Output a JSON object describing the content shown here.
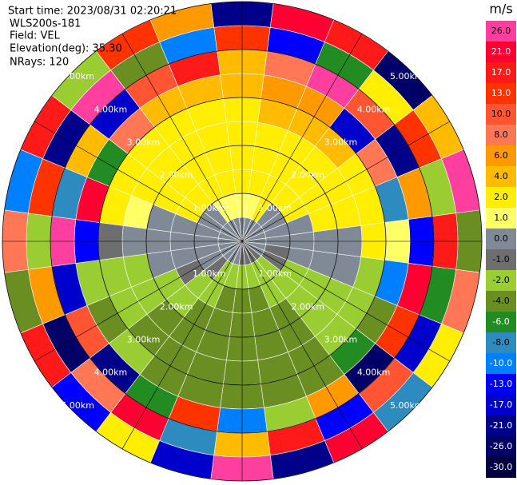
{
  "header": {
    "start_time": "Start time: 2023/08/31 02:20:21",
    "instrument": "WLS200s-181",
    "field": "Field: VEL",
    "elevation": "Elevation(deg): 35.30",
    "nrays": "NRays: 120"
  },
  "chart_data": {
    "type": "ppi",
    "azimuths": [
      0,
      15,
      30,
      45,
      60,
      75,
      90,
      105,
      120,
      135,
      150,
      165,
      180,
      195,
      210,
      225,
      240,
      255,
      270,
      285,
      300,
      315,
      330,
      345
    ],
    "range_edges_km": [
      0,
      0.5,
      1,
      1.5,
      2,
      2.5,
      3,
      3.5,
      4,
      4.5,
      5
    ],
    "values": [
      [
        0,
        1,
        2,
        2,
        3,
        3,
        4,
        5,
        13,
        -21
      ],
      [
        0,
        1,
        2,
        2,
        3,
        4,
        6,
        8,
        -13,
        21
      ],
      [
        0,
        2,
        2,
        3,
        3,
        4,
        6,
        26,
        -6,
        17
      ],
      [
        0,
        0,
        2,
        2,
        3,
        4,
        -17,
        10,
        2,
        -26
      ],
      [
        0,
        0,
        2,
        2,
        3,
        2,
        8,
        -21,
        13,
        4
      ],
      [
        0,
        0,
        0,
        2,
        2,
        2,
        -8,
        6,
        -2,
        26
      ],
      [
        0,
        0,
        0,
        0,
        0,
        2,
        1,
        -13,
        17,
        -4
      ],
      [
        0,
        -1,
        0,
        0,
        0,
        -2,
        -10,
        21,
        -6,
        8
      ],
      [
        0,
        -1,
        -2,
        -2,
        -2,
        -2,
        -4,
        13,
        -17,
        2
      ],
      [
        -1,
        -2,
        -2,
        -2,
        -2,
        -2,
        -6,
        -26,
        10,
        -8
      ],
      [
        -1,
        -2,
        -2,
        -3,
        -3,
        -3,
        -3,
        6,
        -13,
        21
      ],
      [
        -1,
        -2,
        -3,
        -3,
        -3,
        -3,
        -3,
        -2,
        17,
        -21
      ],
      [
        -1,
        -2,
        -3,
        -3,
        -3,
        -3,
        -4,
        -10,
        4,
        26
      ],
      [
        0,
        -2,
        -3,
        -3,
        -3,
        -3,
        -3,
        13,
        -8,
        -17
      ],
      [
        0,
        -2,
        -2,
        -3,
        -3,
        -3,
        -3,
        -6,
        21,
        2
      ],
      [
        0,
        -1,
        -2,
        -2,
        -3,
        -3,
        -2,
        -21,
        8,
        -13
      ],
      [
        0,
        0,
        -1,
        -2,
        -2,
        -2,
        -4,
        10,
        -26,
        17
      ],
      [
        0,
        0,
        0,
        0,
        -2,
        -2,
        -2,
        -17,
        6,
        -4
      ],
      [
        0,
        0,
        0,
        0,
        0,
        -1,
        -13,
        26,
        -2,
        8
      ],
      [
        0,
        0,
        0,
        0,
        1,
        2,
        21,
        -8,
        13,
        -10
      ],
      [
        0,
        0,
        2,
        2,
        2,
        2,
        -6,
        4,
        -21,
        17
      ],
      [
        0,
        0,
        2,
        2,
        2,
        3,
        8,
        -17,
        26,
        -2
      ],
      [
        0,
        1,
        2,
        2,
        2,
        3,
        5,
        10,
        -4,
        13
      ],
      [
        0,
        1,
        2,
        2,
        3,
        3,
        4,
        17,
        -10,
        6
      ]
    ],
    "range_rings": [
      {
        "value": 1,
        "label": "1.00km"
      },
      {
        "value": 2,
        "label": "2.00km"
      },
      {
        "value": 3,
        "label": "3.00km"
      },
      {
        "value": 4,
        "label": "4.00km"
      },
      {
        "value": 5,
        "label": "5.00km"
      }
    ],
    "colorbar": {
      "title": "m/s",
      "ticks": [
        {
          "value": 26,
          "label": "26.0"
        },
        {
          "value": 21,
          "label": "21.0"
        },
        {
          "value": 17,
          "label": "17.0"
        },
        {
          "value": 13,
          "label": "13.0"
        },
        {
          "value": 10,
          "label": "10.0"
        },
        {
          "value": 8,
          "label": "8.0"
        },
        {
          "value": 6,
          "label": "6.0"
        },
        {
          "value": 4,
          "label": "4.0"
        },
        {
          "value": 2,
          "label": "2.0"
        },
        {
          "value": 1,
          "label": "1.0"
        },
        {
          "value": 0,
          "label": "0.0"
        },
        {
          "value": -1,
          "label": "-1.0"
        },
        {
          "value": -2,
          "label": "-2.0"
        },
        {
          "value": -4,
          "label": "-4.0"
        },
        {
          "value": -6,
          "label": "-6.0"
        },
        {
          "value": -8,
          "label": "-8.0"
        },
        {
          "value": -10,
          "label": "-10.0"
        },
        {
          "value": -13,
          "label": "-13.0"
        },
        {
          "value": -17,
          "label": "-17.0"
        },
        {
          "value": -21,
          "label": "-21.0"
        },
        {
          "value": -26,
          "label": "-26.0"
        },
        {
          "value": -30,
          "label": "-30.0"
        }
      ],
      "colors": [
        "#ff3fa0",
        "#ff0033",
        "#ff1a1a",
        "#ff3300",
        "#ff5533",
        "#ff7755",
        "#ff9900",
        "#ffbb00",
        "#ffee00",
        "#ffff66",
        "#808a96",
        "#6e6e6e",
        "#9acd32",
        "#6b8e23",
        "#228b22",
        "#2e8bc0",
        "#0080ff",
        "#0000ff",
        "#0000cd",
        "#00008b",
        "#000066",
        "#000040"
      ]
    }
  }
}
